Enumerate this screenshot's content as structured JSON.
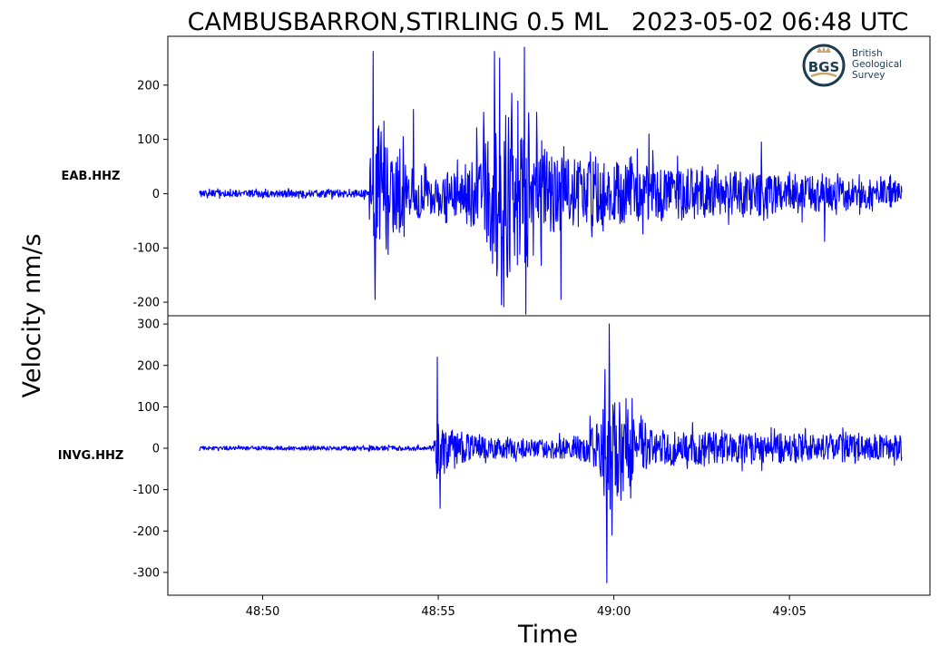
{
  "title": "CAMBUSBARRON,STIRLING 0.5 ML   2023-05-02 06:48 UTC",
  "xlabel": "Time",
  "ylabel": "Velocity nm/s",
  "logo": {
    "badge_text": "BGS",
    "text_lines": [
      "British",
      "Geological",
      "Survey"
    ],
    "colors": {
      "navy": "#1d3d4f",
      "gold": "#c9a66b"
    }
  },
  "colors": {
    "trace": "#0000ff",
    "axes": "#000000",
    "background": "#ffffff"
  },
  "chart_data": [
    {
      "type": "line",
      "station": "EAB.HHZ",
      "x_unit": "minutes after 06:48:00 UTC",
      "xlim": [
        47.3,
        69.0
      ],
      "ylim": [
        -225,
        290
      ],
      "yticks": [
        -200,
        -100,
        0,
        100,
        200
      ],
      "xticks": [],
      "envelope": {
        "t": [
          48.2,
          53.0,
          53.1,
          53.3,
          53.8,
          54.6,
          55.5,
          56.0,
          56.4,
          56.8,
          57.3,
          57.6,
          58.2,
          59.2,
          60.5,
          62.0,
          63.5,
          65.0,
          66.5,
          68.0,
          68.2
        ],
        "a": [
          8,
          10,
          120,
          180,
          100,
          60,
          55,
          90,
          170,
          200,
          230,
          180,
          100,
          80,
          75,
          65,
          55,
          50,
          40,
          32,
          30
        ]
      },
      "peaks": [
        [
          53.15,
          262
        ],
        [
          53.2,
          -195
        ],
        [
          53.5,
          85
        ],
        [
          54.0,
          105
        ],
        [
          54.3,
          155
        ],
        [
          56.3,
          150
        ],
        [
          56.6,
          262
        ],
        [
          56.75,
          250
        ],
        [
          56.8,
          -205
        ],
        [
          57.1,
          185
        ],
        [
          57.45,
          270
        ],
        [
          57.5,
          -222
        ],
        [
          57.8,
          150
        ],
        [
          58.5,
          -195
        ],
        [
          61.0,
          110
        ],
        [
          64.2,
          95
        ],
        [
          66.0,
          -88
        ]
      ]
    },
    {
      "type": "line",
      "station": "INVG.HHZ",
      "x_unit": "minutes after 06:48:00 UTC",
      "xlim": [
        47.3,
        69.0
      ],
      "ylim": [
        -355,
        320
      ],
      "yticks": [
        -300,
        -200,
        -100,
        0,
        100,
        200,
        300
      ],
      "xticks": [
        {
          "value": 50.0,
          "label": "48:50"
        },
        {
          "value": 55.0,
          "label": "48:55"
        },
        {
          "value": 60.0,
          "label": "49:00"
        },
        {
          "value": 65.0,
          "label": "49:05"
        }
      ],
      "envelope": {
        "t": [
          48.2,
          54.85,
          54.95,
          55.3,
          56.0,
          57.0,
          58.0,
          59.2,
          59.7,
          59.9,
          60.3,
          61.0,
          62.5,
          64.0,
          66.0,
          68.0,
          68.2
        ],
        "a": [
          6,
          8,
          100,
          60,
          40,
          32,
          30,
          45,
          150,
          220,
          140,
          60,
          55,
          50,
          45,
          42,
          40
        ]
      },
      "peaks": [
        [
          54.98,
          220
        ],
        [
          55.05,
          -145
        ],
        [
          59.75,
          190
        ],
        [
          59.8,
          -325
        ],
        [
          59.87,
          300
        ],
        [
          59.95,
          -210
        ],
        [
          60.35,
          120
        ]
      ]
    }
  ]
}
